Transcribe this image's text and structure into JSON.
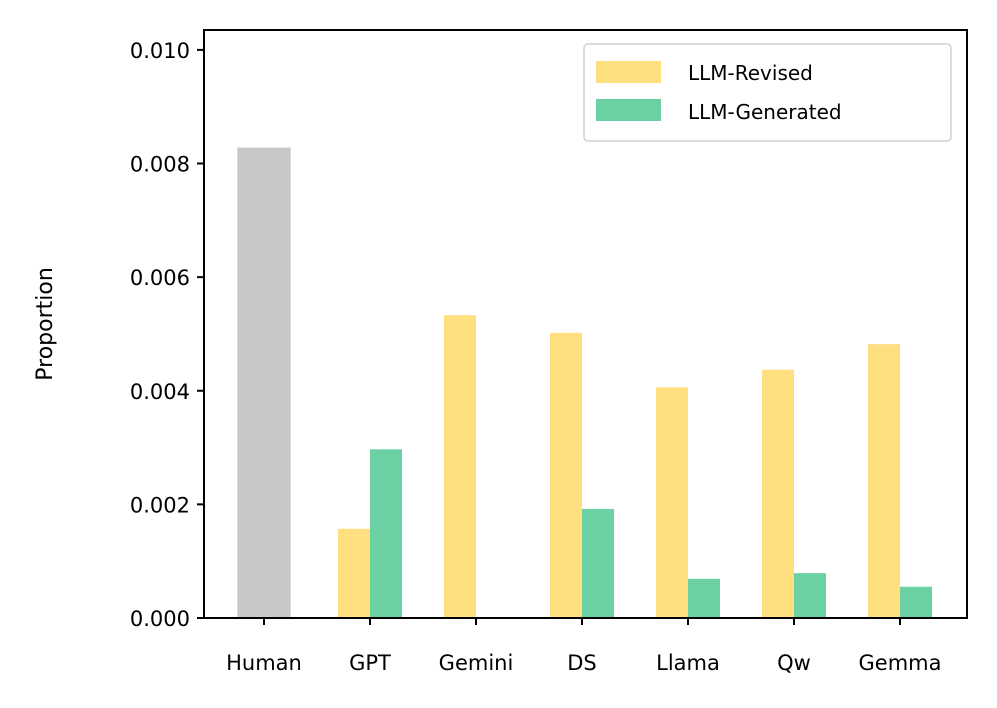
{
  "chart_data": {
    "type": "bar",
    "categories": [
      "Human",
      "GPT",
      "Gemini",
      "DS",
      "Llama",
      "Qw",
      "Gemma"
    ],
    "human_value": 0.00828,
    "series": [
      {
        "name": "LLM-Revised",
        "color": "#ffdf80",
        "values": [
          null,
          0.00157,
          0.00533,
          0.00502,
          0.00406,
          0.00437,
          0.00482
        ]
      },
      {
        "name": "LLM-Generated",
        "color": "#6bd1a3",
        "values": [
          null,
          0.00297,
          0.0,
          0.00192,
          0.00069,
          0.00079,
          0.00055
        ]
      }
    ],
    "human_color": "#c8c8c8",
    "title": "",
    "xlabel": "",
    "ylabel": "Proportion",
    "ylim": [
      0,
      0.01035
    ],
    "yticks": [
      0.0,
      0.002,
      0.004,
      0.006,
      0.008,
      0.01
    ],
    "ytick_labels": [
      "0.000",
      "0.002",
      "0.004",
      "0.006",
      "0.008",
      "0.010"
    ],
    "legend_position": "top-right"
  }
}
